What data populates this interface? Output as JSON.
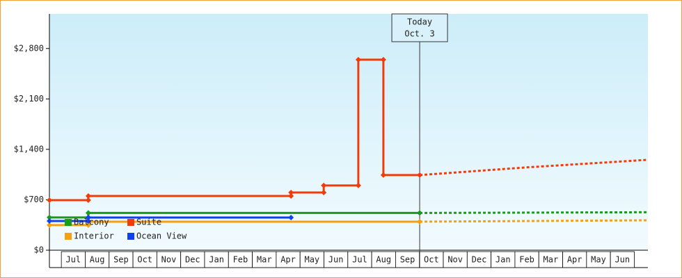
{
  "chart_data": {
    "type": "line",
    "ylim": [
      0,
      3280
    ],
    "yticks": [
      {
        "value": 0,
        "label": "$0"
      },
      {
        "value": 700,
        "label": "$700"
      },
      {
        "value": 1400,
        "label": "$1,400"
      },
      {
        "value": 2100,
        "label": "$2,100"
      },
      {
        "value": 2800,
        "label": "$2,800"
      }
    ],
    "xlim": [
      0,
      25.07
    ],
    "xticks": [
      {
        "value": 1,
        "label": "Jul"
      },
      {
        "value": 2,
        "label": "Aug"
      },
      {
        "value": 3,
        "label": "Sep"
      },
      {
        "value": 4,
        "label": "Oct"
      },
      {
        "value": 5,
        "label": "Nov"
      },
      {
        "value": 6,
        "label": "Dec"
      },
      {
        "value": 7,
        "label": "Jan"
      },
      {
        "value": 8,
        "label": "Feb"
      },
      {
        "value": 9,
        "label": "Mar"
      },
      {
        "value": 10,
        "label": "Apr"
      },
      {
        "value": 11,
        "label": "May"
      },
      {
        "value": 12,
        "label": "Jun"
      },
      {
        "value": 13,
        "label": "Jul"
      },
      {
        "value": 14,
        "label": "Aug"
      },
      {
        "value": 15,
        "label": "Sep"
      },
      {
        "value": 16,
        "label": "Oct"
      },
      {
        "value": 17,
        "label": "Nov"
      },
      {
        "value": 18,
        "label": "Dec"
      },
      {
        "value": 19,
        "label": "Jan"
      },
      {
        "value": 20,
        "label": "Feb"
      },
      {
        "value": 21,
        "label": "Mar"
      },
      {
        "value": 22,
        "label": "Apr"
      },
      {
        "value": 23,
        "label": "May"
      },
      {
        "value": 24,
        "label": "Jun"
      }
    ],
    "annotation": {
      "x": 15.51,
      "lines": [
        "Today",
        "Oct. 3"
      ]
    },
    "series": [
      {
        "name": "Balcony",
        "color": "#1a9a1a",
        "x": [
          0,
          1.63,
          1.63,
          15.51
        ],
        "values": [
          455,
          455,
          517,
          517
        ],
        "forecast": {
          "x": [
            15.51,
            25.07
          ],
          "values": [
            517,
            527
          ]
        }
      },
      {
        "name": "Suite",
        "color": "#f03c0a",
        "x": [
          0,
          1.63,
          1.63,
          10.12,
          10.12,
          11.49,
          11.49,
          12.94,
          12.94,
          13.99,
          13.99,
          15.51
        ],
        "values": [
          695,
          695,
          753,
          753,
          801,
          801,
          898,
          898,
          2645,
          2645,
          1043,
          1043
        ],
        "forecast": {
          "x": [
            15.51,
            20,
            25.07
          ],
          "values": [
            1043,
            1150,
            1255
          ]
        }
      },
      {
        "name": "Interior",
        "color": "#f5a010",
        "x": [
          0,
          1.63,
          1.63,
          15.51
        ],
        "values": [
          348,
          348,
          396,
          396
        ],
        "forecast": {
          "x": [
            15.51,
            25.07
          ],
          "values": [
            396,
            415
          ]
        }
      },
      {
        "name": "Ocean View",
        "color": "#1040f0",
        "x": [
          0,
          1.63,
          1.63,
          10.12
        ],
        "values": [
          405,
          405,
          454,
          454
        ]
      }
    ]
  }
}
